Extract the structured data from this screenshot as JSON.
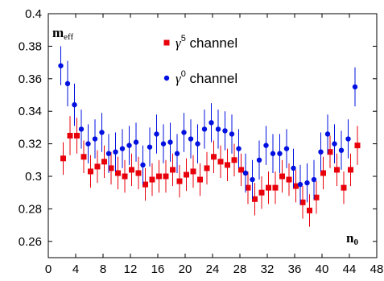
{
  "chart_data": {
    "type": "scatter",
    "xlabel": "n0",
    "ylabel": "meff",
    "xlim": [
      0,
      48
    ],
    "ylim": [
      0.25,
      0.4
    ],
    "x_ticks": [
      0,
      4,
      8,
      12,
      16,
      20,
      24,
      28,
      32,
      36,
      40,
      44,
      48
    ],
    "y_ticks": [
      0.26,
      0.28,
      0.3,
      0.32,
      0.34,
      0.36,
      0.38,
      0.4
    ],
    "y_tick_labels": [
      "0.26",
      "0.28",
      "0.3",
      "0.32",
      "0.34",
      "0.36",
      "0.38",
      "0.4"
    ],
    "legend_position": "top-center",
    "series": [
      {
        "name": "γ5 channel",
        "name_base": "γ",
        "name_sup": "5",
        "name_rest": " channel",
        "color": "#e8000b",
        "marker": "square",
        "x": [
          2,
          3,
          4,
          5,
          6,
          7,
          8,
          9,
          10,
          11,
          12,
          13,
          14,
          15,
          16,
          17,
          18,
          19,
          20,
          21,
          22,
          23,
          24,
          25,
          26,
          27,
          28,
          29,
          30,
          31,
          32,
          33,
          34,
          35,
          36,
          37,
          38,
          39,
          40,
          41,
          42,
          43,
          44,
          45
        ],
        "y": [
          0.311,
          0.325,
          0.325,
          0.312,
          0.303,
          0.306,
          0.309,
          0.305,
          0.302,
          0.3,
          0.304,
          0.302,
          0.295,
          0.298,
          0.3,
          0.3,
          0.304,
          0.297,
          0.301,
          0.303,
          0.298,
          0.305,
          0.312,
          0.309,
          0.307,
          0.31,
          0.304,
          0.293,
          0.286,
          0.29,
          0.293,
          0.293,
          0.3,
          0.298,
          0.294,
          0.284,
          0.279,
          0.287,
          0.302,
          0.315,
          0.304,
          0.293,
          0.304,
          0.319
        ],
        "err": [
          0.01,
          0.012,
          0.011,
          0.01,
          0.01,
          0.01,
          0.01,
          0.01,
          0.01,
          0.01,
          0.01,
          0.01,
          0.01,
          0.01,
          0.01,
          0.01,
          0.01,
          0.01,
          0.01,
          0.01,
          0.01,
          0.01,
          0.01,
          0.01,
          0.01,
          0.01,
          0.01,
          0.01,
          0.01,
          0.01,
          0.01,
          0.01,
          0.01,
          0.01,
          0.01,
          0.01,
          0.01,
          0.01,
          0.01,
          0.01,
          0.01,
          0.01,
          0.01,
          0.012
        ]
      },
      {
        "name": "γ0 channel",
        "name_base": "γ",
        "name_sup": "0",
        "name_rest": " channel",
        "color": "#0010e0",
        "marker": "circle",
        "x": [
          2,
          3,
          4,
          5,
          6,
          7,
          8,
          9,
          10,
          11,
          12,
          13,
          14,
          15,
          16,
          17,
          18,
          19,
          20,
          21,
          22,
          23,
          24,
          25,
          26,
          27,
          28,
          29,
          30,
          31,
          32,
          33,
          34,
          35,
          36,
          37,
          38,
          39,
          40,
          41,
          42,
          43,
          44,
          45
        ],
        "y": [
          0.368,
          0.357,
          0.344,
          0.329,
          0.32,
          0.323,
          0.327,
          0.314,
          0.315,
          0.317,
          0.319,
          0.321,
          0.307,
          0.318,
          0.326,
          0.32,
          0.321,
          0.314,
          0.327,
          0.323,
          0.32,
          0.329,
          0.333,
          0.329,
          0.328,
          0.326,
          0.317,
          0.302,
          0.298,
          0.31,
          0.319,
          0.314,
          0.314,
          0.317,
          0.305,
          0.295,
          0.296,
          0.298,
          0.315,
          0.326,
          0.32,
          0.316,
          0.323,
          0.355
        ],
        "err": [
          0.012,
          0.014,
          0.013,
          0.012,
          0.012,
          0.012,
          0.012,
          0.012,
          0.012,
          0.012,
          0.012,
          0.012,
          0.012,
          0.012,
          0.012,
          0.012,
          0.012,
          0.012,
          0.012,
          0.012,
          0.012,
          0.012,
          0.012,
          0.012,
          0.012,
          0.012,
          0.012,
          0.012,
          0.012,
          0.012,
          0.012,
          0.012,
          0.012,
          0.012,
          0.012,
          0.012,
          0.012,
          0.012,
          0.012,
          0.012,
          0.012,
          0.012,
          0.012,
          0.012
        ]
      }
    ]
  }
}
